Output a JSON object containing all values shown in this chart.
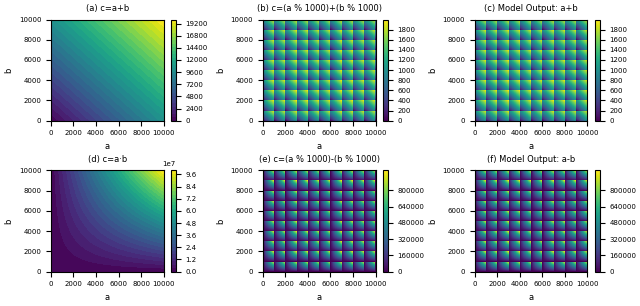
{
  "title_a": "(a) c=a+b",
  "title_b": "(b) c=(a % 1000)+(b % 1000)",
  "title_c": "(c) Model Output: a+b",
  "title_d": "(d) c=a·b",
  "title_e": "(e) c=(a % 1000)-(b % 1000)",
  "title_f": "(f) Model Output: a-b",
  "xlabel": "a",
  "ylabel": "b",
  "cmap": "viridis",
  "figsize": [
    6.4,
    3.06
  ],
  "dpi": 100,
  "n": 500,
  "contour_levels_a": 30,
  "contour_levels_d": 30,
  "cb_ticks_a": [
    0,
    2400,
    4800,
    7200,
    9600,
    12000,
    14400,
    16800,
    19200
  ],
  "cb_ticks_b": [
    0,
    200,
    400,
    600,
    800,
    1000,
    1200,
    1400,
    1600,
    1800
  ],
  "cb_ticks_c": [
    0,
    200,
    400,
    600,
    800,
    1000,
    1200,
    1400,
    1600,
    1800
  ],
  "cb_ticks_d": [
    0.0,
    1.2,
    2.4,
    3.6,
    4.8,
    6.0,
    7.2,
    8.4,
    9.6
  ],
  "cb_ticks_ef": [
    0,
    160000,
    320000,
    480000,
    640000,
    800000
  ],
  "tick_fontsize": 5,
  "title_fontsize": 6,
  "label_fontsize": 6
}
